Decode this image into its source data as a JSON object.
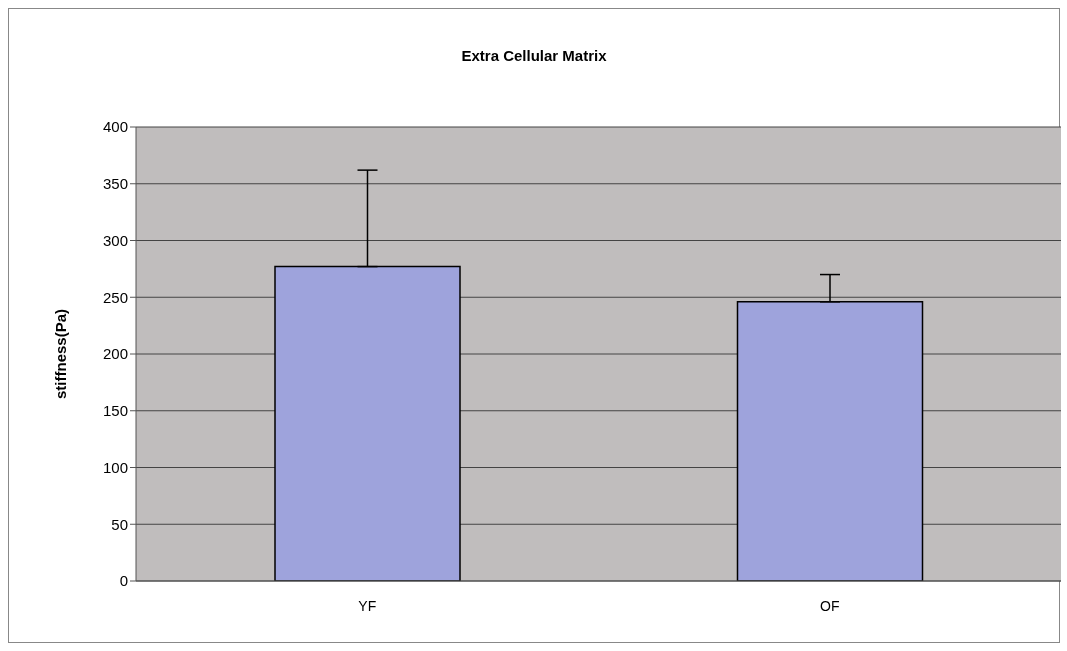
{
  "chart_data": {
    "type": "bar",
    "title": "Extra Cellular Matrix",
    "ylabel": "stiffness(Pa)",
    "categories": [
      "YF",
      "OF"
    ],
    "values": [
      277,
      246
    ],
    "errors": [
      [
        277,
        362
      ],
      [
        246,
        270
      ]
    ],
    "color": "#9ea3dc",
    "ylim": [
      0,
      400
    ],
    "yticks": [
      0,
      50,
      100,
      150,
      200,
      250,
      300,
      350,
      400
    ],
    "grid": "y",
    "legend": false
  }
}
